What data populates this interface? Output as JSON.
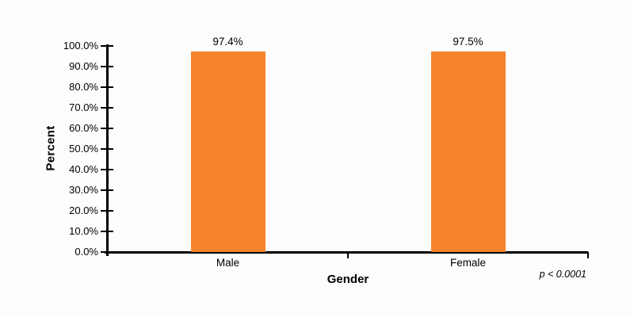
{
  "chart_data": {
    "type": "bar",
    "title": "",
    "xlabel": "Gender",
    "ylabel": "Percent",
    "categories": [
      "Male",
      "Female"
    ],
    "values": [
      97.4,
      97.5
    ],
    "bar_labels": [
      "97.4%",
      "97.5%"
    ],
    "annotation": "p < 0.0001",
    "ylim": [
      0,
      100
    ],
    "yticks": [
      0,
      10,
      20,
      30,
      40,
      50,
      60,
      70,
      80,
      90,
      100
    ],
    "ytick_labels": [
      "0.0%",
      "10.0%",
      "20.0%",
      "30.0%",
      "40.0%",
      "50.0%",
      "60.0%",
      "70.0%",
      "80.0%",
      "90.0%",
      "100.0%"
    ],
    "grid": false,
    "legend": "none",
    "colors": {
      "bar": "#F6822B",
      "axis": "#000000",
      "text": "#000000",
      "background": "#FDFDFD"
    }
  }
}
